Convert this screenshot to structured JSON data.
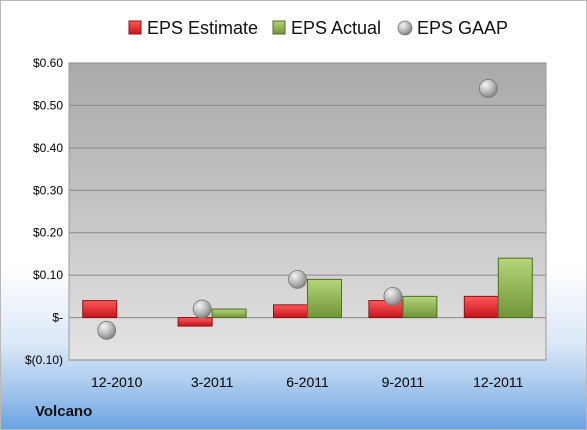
{
  "chart_data": {
    "type": "bar",
    "categories": [
      "12-2010",
      "3-2011",
      "6-2011",
      "9-2011",
      "12-2011"
    ],
    "series": [
      {
        "name": "EPS Estimate",
        "kind": "bar",
        "color": "#d9232b",
        "values": [
          0.04,
          -0.02,
          0.03,
          0.04,
          0.05
        ]
      },
      {
        "name": "EPS Actual",
        "kind": "bar",
        "color": "#8fb34a",
        "values": [
          null,
          0.02,
          0.09,
          0.05,
          0.14
        ]
      },
      {
        "name": "EPS GAAP",
        "kind": "marker",
        "color": "#b4b4b4",
        "values": [
          -0.03,
          0.02,
          0.09,
          0.05,
          0.54
        ]
      }
    ],
    "ylim": [
      -0.1,
      0.6
    ],
    "yticks": [
      -0.1,
      0.0,
      0.1,
      0.2,
      0.3,
      0.4,
      0.5,
      0.6
    ],
    "ytick_labels": [
      "$(0.10)",
      "$-",
      "$0.10",
      "$0.20",
      "$0.30",
      "$0.40",
      "$0.50",
      "$0.60"
    ],
    "grid": true,
    "legend_position": "top"
  },
  "company": "Volcano"
}
